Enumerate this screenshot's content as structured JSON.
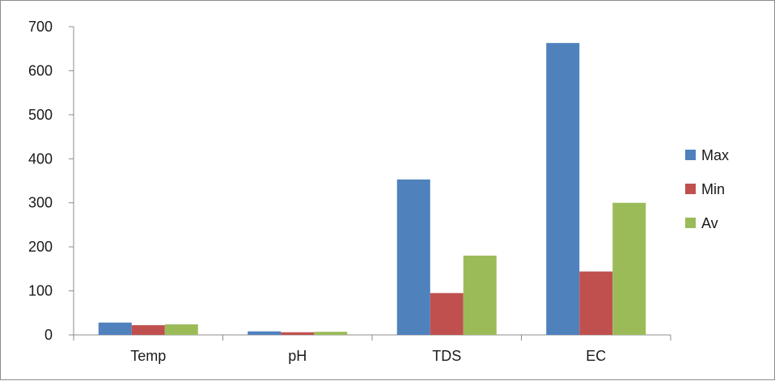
{
  "chart_data": {
    "type": "bar",
    "categories": [
      "Temp",
      "pH",
      "TDS",
      "EC"
    ],
    "series": [
      {
        "name": "Max",
        "values": [
          28,
          8,
          353,
          663
        ],
        "color": "#4f81bd"
      },
      {
        "name": "Min",
        "values": [
          22,
          6,
          95,
          144
        ],
        "color": "#c0504d"
      },
      {
        "name": "Av",
        "values": [
          24,
          7,
          180,
          300
        ],
        "color": "#9bbb59"
      }
    ],
    "yticks": [
      0,
      100,
      200,
      300,
      400,
      500,
      600,
      700
    ],
    "ylim": [
      0,
      700
    ],
    "grid": false,
    "legend_position": "right"
  }
}
